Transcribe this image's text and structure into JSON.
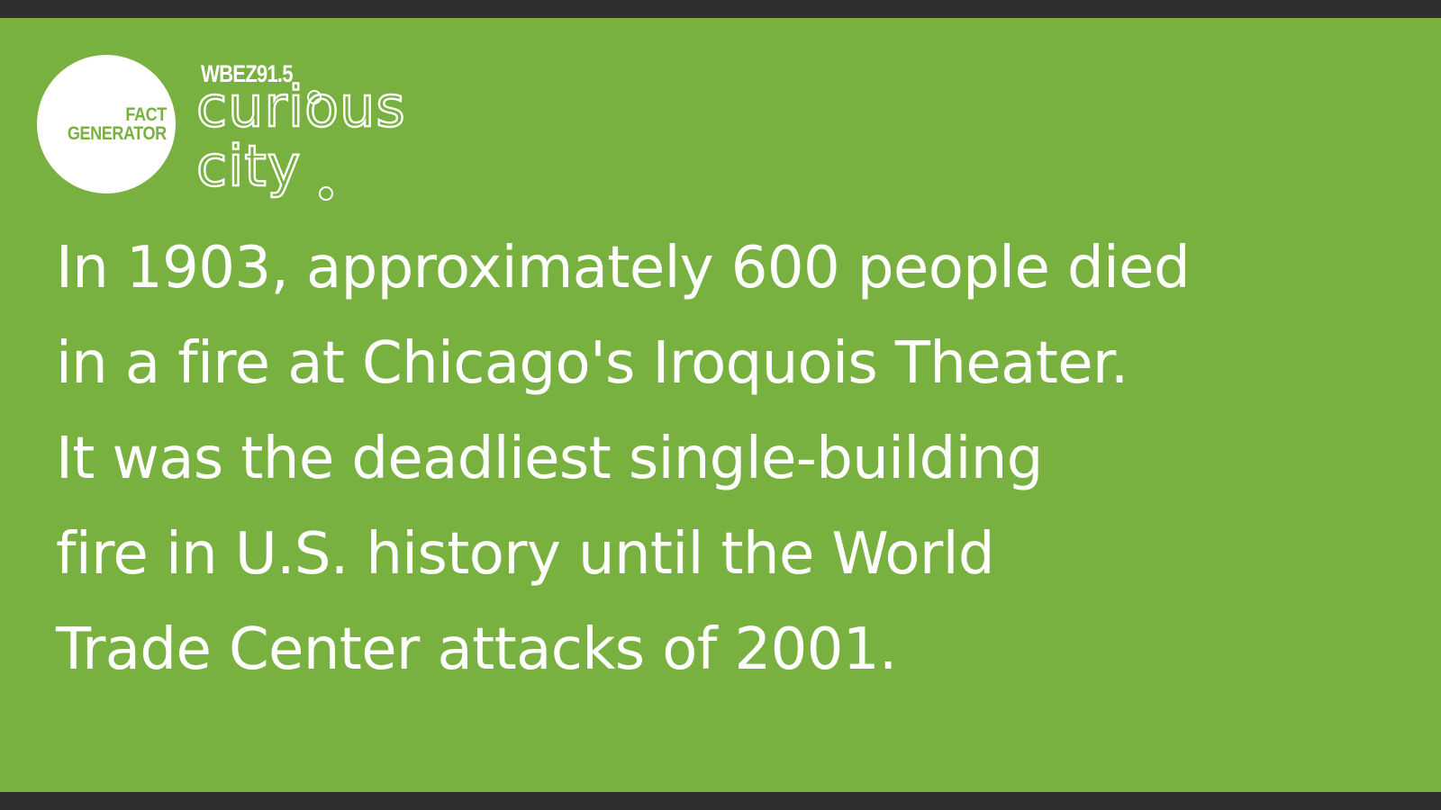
{
  "colors": {
    "background": "#78b13f",
    "frame": "#2f2f2f",
    "text": "#ffffff"
  },
  "badge": {
    "line1": "FACT",
    "line2": "GENERATOR"
  },
  "brand": {
    "station": "WBEZ91.5",
    "word1": "curious",
    "word2": "city"
  },
  "fact": {
    "lines": [
      "In 1903, approximately 600 people died",
      "in a fire at Chicago's Iroquois Theater.",
      "It was the deadliest single-building",
      "fire in U.S. history until the World",
      "Trade Center attacks of 2001."
    ]
  }
}
